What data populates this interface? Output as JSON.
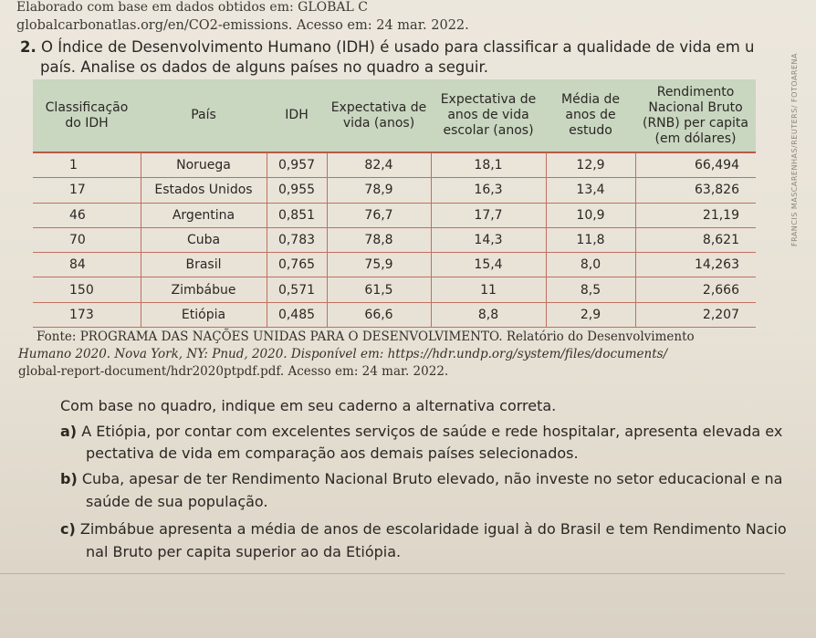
{
  "header": {
    "line1": "Elaborado com base em dados obtidos em: GLOBAL C",
    "line2": "globalcarbonatlas.org/en/CO2-emissions. Acesso em: 24 mar. 2022."
  },
  "question": {
    "number": "2.",
    "text_line1": "O Índice de Desenvolvimento Humano (IDH) é usado para classificar a qualidade de vida em u",
    "text_line2": "país. Analise os dados de alguns países no quadro a seguir."
  },
  "table": {
    "headers": {
      "rank": "Classificação do IDH",
      "country": "País",
      "idh": "IDH",
      "life": "Expectativa de vida (anos)",
      "school": "Expectativa de anos de vida escolar (anos)",
      "study": "Média de anos de estudo",
      "income": "Rendimento Nacional Bruto (RNB) per capita (em dólares)"
    },
    "rows": [
      {
        "rank": "1",
        "country": "Noruega",
        "idh": "0,957",
        "life": "82,4",
        "school": "18,1",
        "study": "12,9",
        "income": "66,494"
      },
      {
        "rank": "17",
        "country": "Estados Unidos",
        "idh": "0,955",
        "life": "78,9",
        "school": "16,3",
        "study": "13,4",
        "income": "63,826"
      },
      {
        "rank": "46",
        "country": "Argentina",
        "idh": "0,851",
        "life": "76,7",
        "school": "17,7",
        "study": "10,9",
        "income": "21,19"
      },
      {
        "rank": "70",
        "country": "Cuba",
        "idh": "0,783",
        "life": "78,8",
        "school": "14,3",
        "study": "11,8",
        "income": "8,621"
      },
      {
        "rank": "84",
        "country": "Brasil",
        "idh": "0,765",
        "life": "75,9",
        "school": "15,4",
        "study": "8,0",
        "income": "14,263"
      },
      {
        "rank": "150",
        "country": "Zimbábue",
        "idh": "0,571",
        "life": "61,5",
        "school": "11",
        "study": "8,5",
        "income": "2,666"
      },
      {
        "rank": "173",
        "country": "Etiópia",
        "idh": "0,485",
        "life": "66,6",
        "school": "8,8",
        "study": "2,9",
        "income": "2,207"
      }
    ]
  },
  "source": {
    "line1": "Fonte: PROGRAMA DAS NAÇÕES UNIDAS PARA O DESENVOLVIMENTO. Relatório do Desenvolvimento",
    "line2": "Humano 2020. Nova York, NY: Pnud, 2020. Disponível em: https://hdr.undp.org/system/files/documents/",
    "line3": "global-report-document/hdr2020ptpdf.pdf. Acesso em: 24 mar. 2022."
  },
  "instruction": "Com base no quadro, indique em seu caderno a alternativa correta.",
  "options": [
    {
      "letter": "a)",
      "line1": "A Etiópia, por contar com excelentes serviços de saúde e rede hospitalar, apresenta elevada ex",
      "line2": "pectativa de vida em comparação aos demais países selecionados."
    },
    {
      "letter": "b)",
      "line1": "Cuba, apesar de ter Rendimento Nacional Bruto elevado, não investe no setor educacional e na",
      "line2": "saúde de sua população."
    },
    {
      "letter": "c)",
      "line1": "Zimbábue apresenta a média de anos de escolaridade igual à do Brasil e tem Rendimento Nacio",
      "line2": "nal Bruto per capita superior ao da Etiópia."
    }
  ],
  "side_credit": "FRANCIS MASCARENHAS/REUTERS/ FOTOARENA"
}
